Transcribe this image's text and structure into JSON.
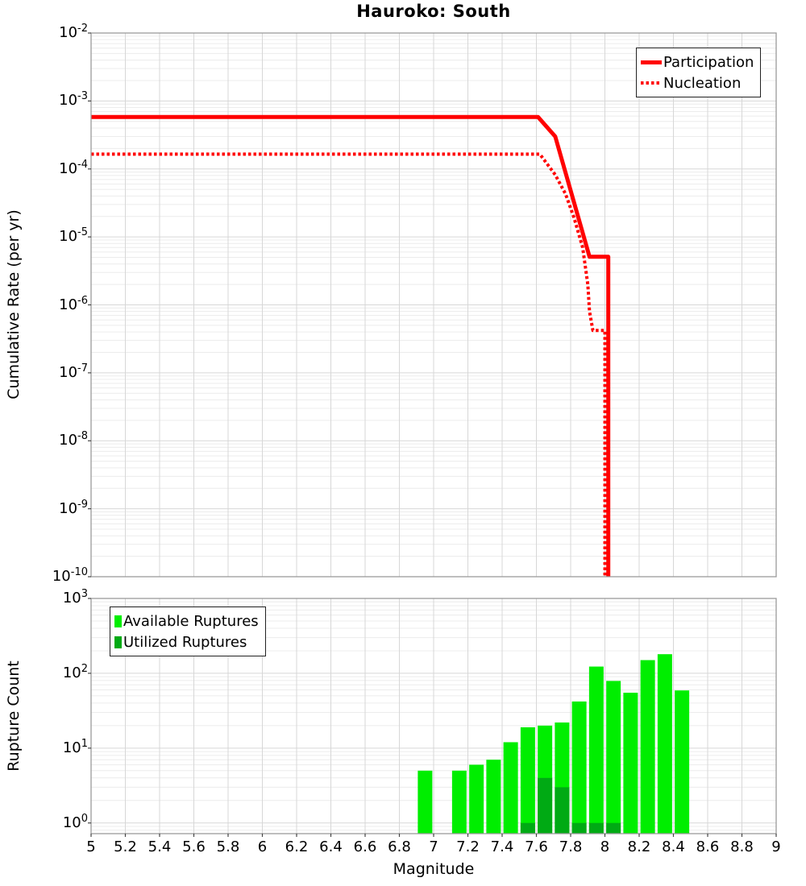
{
  "title": "Hauroko: South",
  "colors": {
    "line_red": "#ff0000",
    "available_green": "#00ee00",
    "utilized_green": "#00aa14",
    "grid_major": "#d7d7d7",
    "grid_minor": "#ececec",
    "frame": "#9a9a9a",
    "tick": "#444444"
  },
  "chart_data": [
    {
      "type": "line",
      "title": "Hauroko: South",
      "xlabel": "Magnitude",
      "ylabel": "Cumulative Rate (per yr)",
      "xlim": [
        5,
        9
      ],
      "ylim": [
        1e-10,
        0.01
      ],
      "y_tick_exponents": [
        -2,
        -3,
        -4,
        -5,
        -6,
        -7,
        -8,
        -9,
        -10
      ],
      "grid": "on",
      "legend_position": "top-right",
      "series": [
        {
          "name": "Participation",
          "style": "solid",
          "points": [
            [
              5.0,
              0.00058
            ],
            [
              7.61,
              0.00058
            ],
            [
              7.71,
              0.0003
            ],
            [
              7.91,
              5.1e-06
            ],
            [
              8.02,
              5.1e-06
            ],
            [
              8.02,
              1e-10
            ]
          ]
        },
        {
          "name": "Nucleation",
          "style": "dotted",
          "points": [
            [
              5.0,
              0.000165
            ],
            [
              7.62,
              0.000165
            ],
            [
              7.71,
              8.2e-05
            ],
            [
              7.77,
              4.3e-05
            ],
            [
              7.82,
              1.9e-05
            ],
            [
              7.87,
              7e-06
            ],
            [
              7.9,
              2e-06
            ],
            [
              7.91,
              8e-07
            ],
            [
              7.93,
              4.2e-07
            ],
            [
              8.0,
              4.2e-07
            ],
            [
              8.0,
              1e-10
            ]
          ]
        }
      ]
    },
    {
      "type": "bar",
      "xlabel": "Magnitude",
      "ylabel": "Rupture Count",
      "xlim": [
        5,
        9
      ],
      "ylim": [
        0.72,
        1000
      ],
      "y_tick_exponents": [
        3,
        2,
        1,
        0
      ],
      "x_ticks": [
        5,
        5.2,
        5.4,
        5.6,
        5.8,
        6,
        6.2,
        6.4,
        6.6,
        6.8,
        7,
        7.2,
        7.4,
        7.6,
        7.8,
        8,
        8.2,
        8.4,
        8.6,
        8.8,
        9
      ],
      "x_tick_labels": [
        "5",
        "5.2",
        "5.4",
        "5.6",
        "5.8",
        "6",
        "6.2",
        "6.4",
        "6.6",
        "6.8",
        "7",
        "7.2",
        "7.4",
        "7.6",
        "7.8",
        "8",
        "8.2",
        "8.4",
        "8.6",
        "8.8",
        "9"
      ],
      "bin_width": 0.1,
      "grid": "on",
      "legend_position": "top-left",
      "series": [
        {
          "name": "Available Ruptures",
          "x": [
            6.95,
            7.15,
            7.25,
            7.35,
            7.45,
            7.55,
            7.65,
            7.75,
            7.85,
            7.95,
            8.05,
            8.15,
            8.25,
            8.35,
            8.45
          ],
          "values": [
            5,
            5,
            6,
            7,
            12,
            19,
            20,
            22,
            42,
            123,
            79,
            55,
            150,
            180,
            59
          ]
        },
        {
          "name": "Utilized Ruptures",
          "x": [
            7.55,
            7.65,
            7.75,
            7.85,
            7.95,
            8.05
          ],
          "values": [
            1,
            4,
            3,
            1,
            1,
            1
          ]
        }
      ]
    }
  ]
}
